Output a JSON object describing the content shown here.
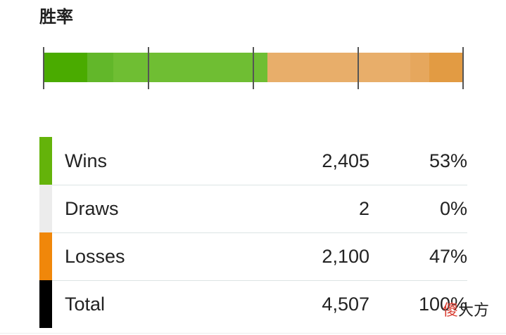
{
  "header": {
    "title": "胜率"
  },
  "result_bar": {
    "win_fraction": 0.533,
    "loss_fraction": 0.467,
    "colors": {
      "win": "#6fbe33",
      "win_dark": "#4aab00",
      "loss": "#e8ae6a",
      "loss_dark": "#e29b43"
    }
  },
  "stats": {
    "rows": [
      {
        "label": "Wins",
        "count": "2,405",
        "percent": "53%",
        "color": "#64b30a"
      },
      {
        "label": "Draws",
        "count": "2",
        "percent": "0%",
        "color": "#ececec"
      },
      {
        "label": "Losses",
        "count": "2,100",
        "percent": "47%",
        "color": "#f0870a"
      },
      {
        "label": "Total",
        "count": "4,507",
        "percent": "100%",
        "color": "#000000"
      }
    ]
  },
  "watermark": {
    "first_char": "傻",
    "rest": "大方"
  }
}
